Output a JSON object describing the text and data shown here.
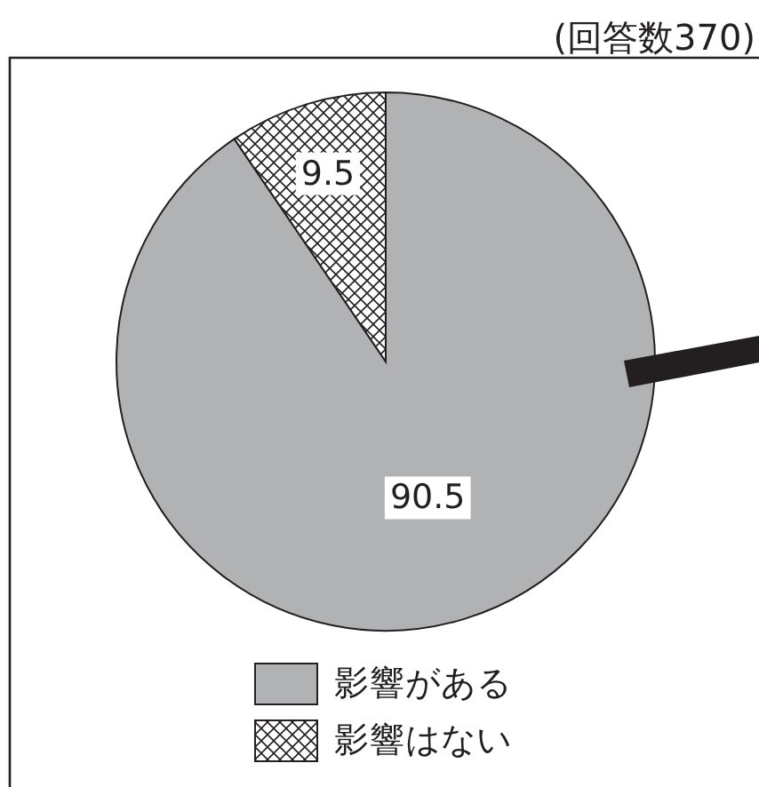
{
  "chart_data": {
    "type": "pie",
    "categories": [
      "影響がある",
      "影響はない"
    ],
    "values": [
      90.5,
      9.5
    ],
    "colors": [
      "#b1b2b4",
      "#231f20"
    ],
    "data_labels": true,
    "legend": "bottom",
    "annotations": [
      "(回答数370)"
    ]
  }
}
